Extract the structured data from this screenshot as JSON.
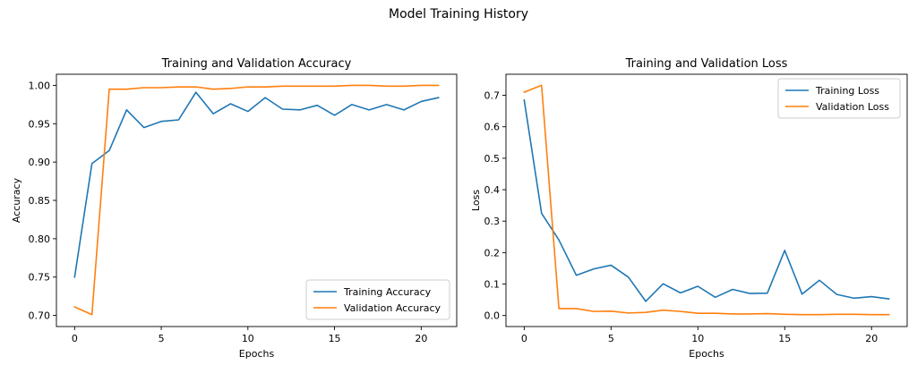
{
  "figure": {
    "suptitle": "Model Training History"
  },
  "chart_data": [
    {
      "type": "line",
      "title": "Training and Validation Accuracy",
      "xlabel": "Epochs",
      "ylabel": "Accuracy",
      "xlim": [
        -1.05,
        22.05
      ],
      "ylim": [
        0.6855,
        1.0145
      ],
      "xticks": [
        0,
        5,
        10,
        15,
        20
      ],
      "yticks": [
        0.7,
        0.75,
        0.8,
        0.85,
        0.9,
        0.95,
        1.0
      ],
      "xtick_labels": [
        "0",
        "5",
        "10",
        "15",
        "20"
      ],
      "ytick_labels": [
        "0.70",
        "0.75",
        "0.80",
        "0.85",
        "0.90",
        "0.95",
        "1.00"
      ],
      "grid": false,
      "legend_position": "lower-right",
      "x": [
        0,
        1,
        2,
        3,
        4,
        5,
        6,
        7,
        8,
        9,
        10,
        11,
        12,
        13,
        14,
        15,
        16,
        17,
        18,
        19,
        20,
        21
      ],
      "series": [
        {
          "name": "Training Accuracy",
          "color": "#1f77b4",
          "values": [
            0.75,
            0.898,
            0.915,
            0.968,
            0.945,
            0.953,
            0.955,
            0.991,
            0.963,
            0.976,
            0.966,
            0.984,
            0.969,
            0.968,
            0.974,
            0.961,
            0.975,
            0.968,
            0.975,
            0.968,
            0.979,
            0.984
          ]
        },
        {
          "name": "Validation Accuracy",
          "color": "#ff7f0e",
          "values": [
            0.711,
            0.701,
            0.995,
            0.995,
            0.997,
            0.997,
            0.998,
            0.998,
            0.995,
            0.996,
            0.998,
            0.998,
            0.999,
            0.999,
            0.999,
            0.999,
            1.0,
            1.0,
            0.999,
            0.999,
            1.0,
            1.0
          ]
        }
      ]
    },
    {
      "type": "line",
      "title": "Training and Validation Loss",
      "xlabel": "Epochs",
      "ylabel": "Loss",
      "xlim": [
        -1.05,
        22.05
      ],
      "ylim": [
        -0.035,
        0.767
      ],
      "xticks": [
        0,
        5,
        10,
        15,
        20
      ],
      "yticks": [
        0.0,
        0.1,
        0.2,
        0.3,
        0.4,
        0.5,
        0.6,
        0.7
      ],
      "xtick_labels": [
        "0",
        "5",
        "10",
        "15",
        "20"
      ],
      "ytick_labels": [
        "0.0",
        "0.1",
        "0.2",
        "0.3",
        "0.4",
        "0.5",
        "0.6",
        "0.7"
      ],
      "grid": false,
      "legend_position": "upper-right",
      "x": [
        0,
        1,
        2,
        3,
        4,
        5,
        6,
        7,
        8,
        9,
        10,
        11,
        12,
        13,
        14,
        15,
        16,
        17,
        18,
        19,
        20,
        21
      ],
      "series": [
        {
          "name": "Training Loss",
          "color": "#1f77b4",
          "values": [
            0.685,
            0.325,
            0.24,
            0.128,
            0.148,
            0.16,
            0.122,
            0.045,
            0.101,
            0.072,
            0.093,
            0.058,
            0.083,
            0.07,
            0.071,
            0.207,
            0.068,
            0.112,
            0.067,
            0.055,
            0.06,
            0.053
          ]
        },
        {
          "name": "Validation Loss",
          "color": "#ff7f0e",
          "values": [
            0.71,
            0.732,
            0.022,
            0.022,
            0.013,
            0.014,
            0.008,
            0.01,
            0.017,
            0.013,
            0.007,
            0.007,
            0.005,
            0.005,
            0.006,
            0.004,
            0.003,
            0.003,
            0.004,
            0.004,
            0.003,
            0.003
          ]
        }
      ]
    }
  ]
}
